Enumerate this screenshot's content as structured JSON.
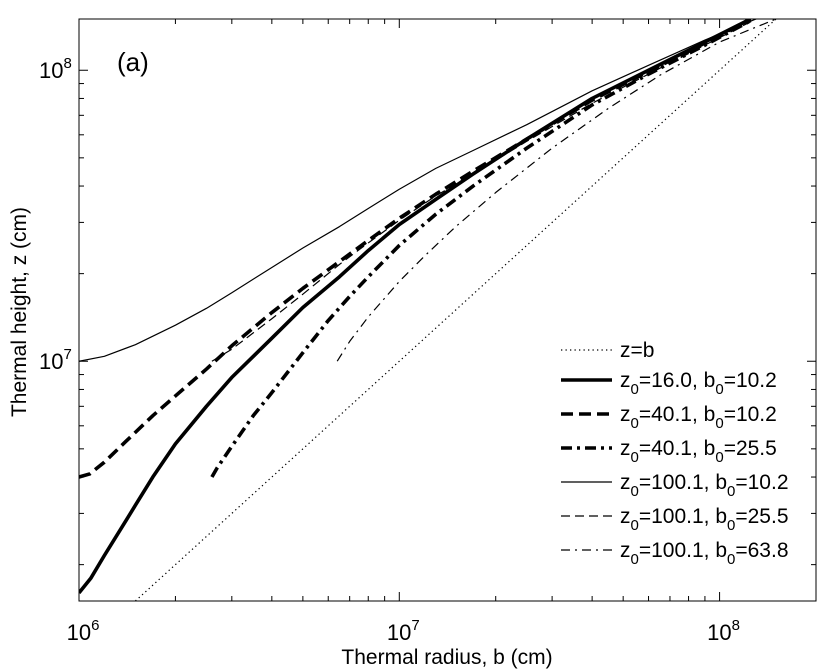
{
  "chart_data": {
    "type": "line",
    "panel_label": "(a)",
    "xlabel": "Thermal radius, b (cm)",
    "ylabel": "Thermal height, z (cm)",
    "xscale": "log",
    "yscale": "log",
    "xlim": [
      1000000,
      200000000
    ],
    "ylim": [
      1500000,
      150000000
    ],
    "x_ticks": [
      {
        "value": 1000000,
        "base": "10",
        "exp": "6"
      },
      {
        "value": 10000000,
        "base": "10",
        "exp": "7"
      },
      {
        "value": 100000000,
        "base": "10",
        "exp": "8"
      }
    ],
    "y_ticks": [
      {
        "value": 10000000,
        "base": "10",
        "exp": "7"
      },
      {
        "value": 100000000,
        "base": "10",
        "exp": "8"
      }
    ],
    "legend_position": "bottom-right",
    "series": [
      {
        "name": "z=b",
        "style": "dotted",
        "width": 1.2,
        "label": {
          "main": "z=b"
        },
        "points": [
          [
            1500000,
            1500000
          ],
          [
            200000000,
            200000000
          ]
        ]
      },
      {
        "name": "z0=16.0, b0=10.2",
        "style": "solid",
        "width": 3.6,
        "label": {
          "a": "z",
          "a_sub": "0",
          "a_val": "=16.0, ",
          "b": "b",
          "b_sub": "0",
          "b_val": "=10.2"
        },
        "points": [
          [
            1000000,
            1600000
          ],
          [
            1090000,
            1800000
          ],
          [
            1200000,
            2150000
          ],
          [
            1350000,
            2650000
          ],
          [
            1500000,
            3200000
          ],
          [
            1700000,
            4000000
          ],
          [
            2000000,
            5200000
          ],
          [
            2500000,
            7000000
          ],
          [
            3000000,
            8800000
          ],
          [
            4000000,
            12000000
          ],
          [
            5000000,
            15300000
          ],
          [
            6500000,
            19500000
          ],
          [
            8000000,
            24000000
          ],
          [
            10000000,
            29500000
          ],
          [
            13000000,
            36000000
          ],
          [
            17000000,
            44000000
          ],
          [
            25000000,
            58000000
          ],
          [
            40000000,
            80000000
          ],
          [
            60000000,
            100000000
          ],
          [
            90000000,
            125000000
          ],
          [
            125000000,
            150000000
          ]
        ]
      },
      {
        "name": "z0=40.1, b0=10.2",
        "style": "dashed",
        "width": 3.6,
        "label": {
          "a": "z",
          "a_sub": "0",
          "a_val": "=40.1, ",
          "b": "b",
          "b_sub": "0",
          "b_val": "=10.2"
        },
        "points": [
          [
            1000000,
            4000000
          ],
          [
            1080000,
            4100000
          ],
          [
            1200000,
            4500000
          ],
          [
            1400000,
            5300000
          ],
          [
            1700000,
            6500000
          ],
          [
            2000000,
            7600000
          ],
          [
            2500000,
            9400000
          ],
          [
            3000000,
            11300000
          ],
          [
            4000000,
            14700000
          ],
          [
            5000000,
            17800000
          ],
          [
            6500000,
            22000000
          ],
          [
            8000000,
            26000000
          ],
          [
            10000000,
            31000000
          ],
          [
            13000000,
            37500000
          ],
          [
            17000000,
            45000000
          ],
          [
            25000000,
            58000000
          ],
          [
            40000000,
            79000000
          ],
          [
            60000000,
            99000000
          ],
          [
            90000000,
            124000000
          ],
          [
            125000000,
            150000000
          ]
        ]
      },
      {
        "name": "z0=40.1, b0=25.5",
        "style": "dashdot",
        "width": 3.6,
        "label": {
          "a": "z",
          "a_sub": "0",
          "a_val": "=40.1, ",
          "b": "b",
          "b_sub": "0",
          "b_val": "=25.5"
        },
        "points": [
          [
            2600000,
            4000000
          ],
          [
            2700000,
            4300000
          ],
          [
            3000000,
            5100000
          ],
          [
            3500000,
            6500000
          ],
          [
            4000000,
            7800000
          ],
          [
            5000000,
            10700000
          ],
          [
            6000000,
            13800000
          ],
          [
            7000000,
            16700000
          ],
          [
            8000000,
            19500000
          ],
          [
            10000000,
            25000000
          ],
          [
            13000000,
            32000000
          ],
          [
            17000000,
            40000000
          ],
          [
            25000000,
            54000000
          ],
          [
            40000000,
            76000000
          ],
          [
            60000000,
            97000000
          ],
          [
            90000000,
            122000000
          ],
          [
            125000000,
            148000000
          ]
        ]
      },
      {
        "name": "z0=100.1, b0=10.2",
        "style": "solid",
        "width": 1.2,
        "label": {
          "a": "z",
          "a_sub": "0",
          "a_val": "=100.1, ",
          "b": "b",
          "b_sub": "0",
          "b_val": "=10.2"
        },
        "points": [
          [
            1000000,
            10000000
          ],
          [
            1200000,
            10400000
          ],
          [
            1500000,
            11400000
          ],
          [
            2000000,
            13300000
          ],
          [
            2500000,
            15200000
          ],
          [
            3000000,
            17200000
          ],
          [
            4000000,
            21000000
          ],
          [
            5000000,
            24500000
          ],
          [
            6500000,
            29000000
          ],
          [
            8000000,
            33500000
          ],
          [
            10000000,
            39000000
          ],
          [
            13000000,
            46000000
          ],
          [
            17000000,
            53000000
          ],
          [
            25000000,
            65000000
          ],
          [
            40000000,
            85000000
          ],
          [
            60000000,
            104000000
          ],
          [
            90000000,
            127000000
          ],
          [
            130000000,
            150000000
          ]
        ]
      },
      {
        "name": "z0=100.1, b0=25.5",
        "style": "dashed",
        "width": 1.2,
        "label": {
          "a": "z",
          "a_sub": "0",
          "a_val": "=100.1, ",
          "b": "b",
          "b_sub": "0",
          "b_val": "=25.5"
        },
        "points": [
          [
            2600000,
            10000000
          ],
          [
            3000000,
            11000000
          ],
          [
            4000000,
            14000000
          ],
          [
            5000000,
            17000000
          ],
          [
            6500000,
            21500000
          ],
          [
            8000000,
            25500000
          ],
          [
            10000000,
            30500000
          ],
          [
            13000000,
            37000000
          ],
          [
            17000000,
            44000000
          ],
          [
            25000000,
            57000000
          ],
          [
            40000000,
            77000000
          ],
          [
            60000000,
            97000000
          ],
          [
            90000000,
            122000000
          ],
          [
            130000000,
            150000000
          ]
        ]
      },
      {
        "name": "z0=100.1, b0=63.8",
        "style": "dashdot",
        "width": 1.2,
        "label": {
          "a": "z",
          "a_sub": "0",
          "a_val": "=100.1, ",
          "b": "b",
          "b_sub": "0",
          "b_val": "=63.8"
        },
        "points": [
          [
            6400000,
            10000000
          ],
          [
            7000000,
            11700000
          ],
          [
            8000000,
            14200000
          ],
          [
            10000000,
            18800000
          ],
          [
            12000000,
            23000000
          ],
          [
            15000000,
            29000000
          ],
          [
            20000000,
            38000000
          ],
          [
            30000000,
            54000000
          ],
          [
            45000000,
            74000000
          ],
          [
            65000000,
            96000000
          ],
          [
            100000000,
            125000000
          ],
          [
            150000000,
            150000000
          ]
        ]
      }
    ]
  }
}
